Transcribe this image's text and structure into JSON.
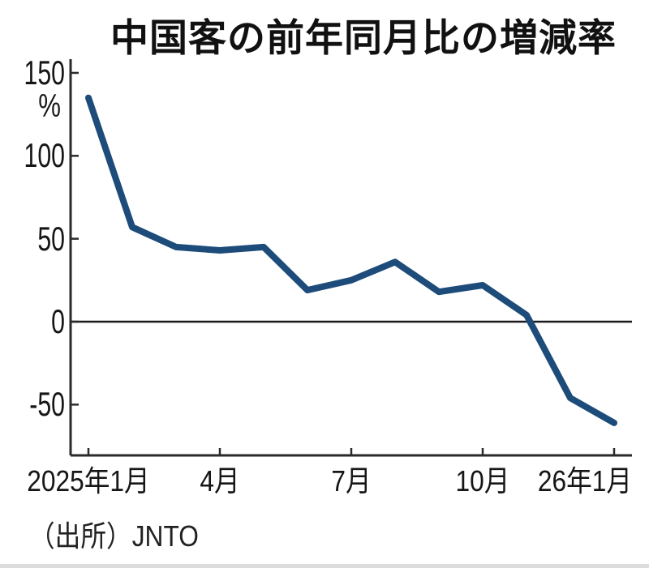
{
  "title": "中国客の前年同月比の増減率",
  "source": "（出所）JNTO",
  "colors": {
    "line": "#1d4c7b",
    "axis": "#2a2a2a",
    "zero_line": "#1a1a1a",
    "text": "#161616"
  },
  "axes": {
    "y_unit": "%",
    "y_ticks": [
      {
        "label": "150",
        "value": 150
      },
      {
        "label": "100",
        "value": 100
      },
      {
        "label": "50",
        "value": 50
      },
      {
        "label": "0",
        "value": 0
      },
      {
        "label": "-50",
        "value": -50
      }
    ],
    "x_ticks": [
      {
        "label": "2025年1月",
        "month_index": 0
      },
      {
        "label": "4月",
        "month_index": 3
      },
      {
        "label": "7月",
        "month_index": 6
      },
      {
        "label": "10月",
        "month_index": 9
      },
      {
        "label": "26年1月",
        "month_index": 12
      }
    ]
  },
  "chart_data": {
    "type": "line",
    "title": "中国客の前年同月比の増減率",
    "x": [
      "2025年1月",
      "2025年2月",
      "2025年3月",
      "2025年4月",
      "2025年5月",
      "2025年6月",
      "2025年7月",
      "2025年8月",
      "2025年9月",
      "2025年10月",
      "2025年11月",
      "2025年12月",
      "2026年1月"
    ],
    "values": [
      135,
      57,
      45,
      43,
      45,
      19,
      25,
      36,
      18,
      22,
      4,
      -46,
      -61
    ],
    "series_name": "中国客 前年同月比",
    "xlabel": "",
    "ylabel": "%",
    "ylim": [
      -81,
      158
    ],
    "grid": false,
    "legend": "none",
    "zero_baseline": true,
    "source": "（出所）JNTO"
  }
}
